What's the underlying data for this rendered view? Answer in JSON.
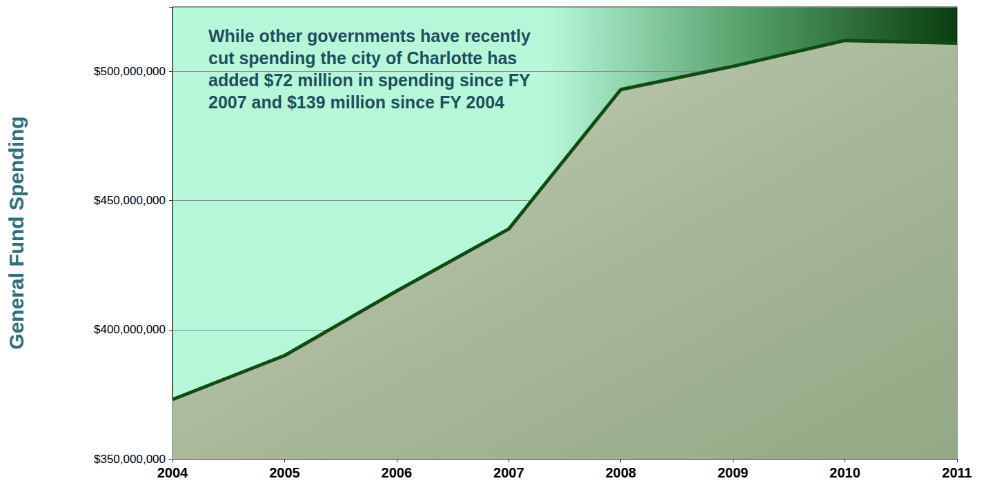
{
  "chart_data": {
    "type": "area",
    "y_label": "General Fund Spending",
    "annotation": "While other governments have recently cut spending the city of Charlotte has added $72 million in spending since FY 2007 and $139 million since FY 2004",
    "categories": [
      "2004",
      "2005",
      "2006",
      "2007",
      "2008",
      "2009",
      "2010",
      "2011"
    ],
    "values": [
      373000000,
      390000000,
      415000000,
      439000000,
      493000000,
      502000000,
      512000000,
      511000000
    ],
    "color": "#0b4d12",
    "ylim": [
      350000000,
      525000000
    ],
    "yticks": [
      {
        "value": 350000000,
        "label": "$350,000,000"
      },
      {
        "value": 400000000,
        "label": "$400,000,000"
      },
      {
        "value": 450000000,
        "label": "$450,000,000"
      },
      {
        "value": 500000000,
        "label": "$500,000,000"
      }
    ],
    "grid": true
  }
}
